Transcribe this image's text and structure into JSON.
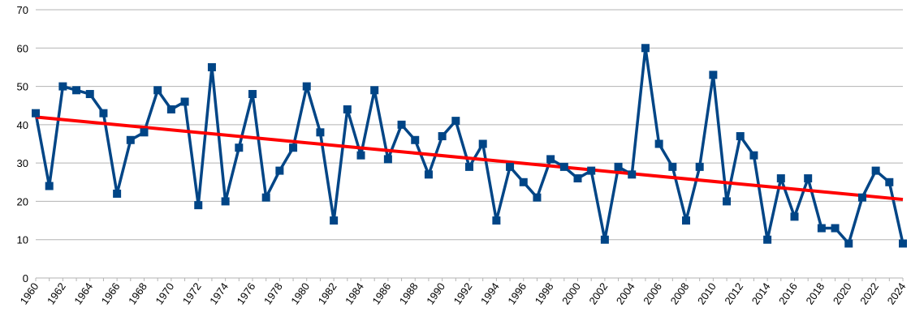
{
  "chart_data": {
    "type": "line",
    "categories": [
      "1960",
      null,
      "1962",
      null,
      "1964",
      null,
      "1966",
      null,
      "1968",
      null,
      "1970",
      null,
      "1972",
      null,
      "1974",
      null,
      "1976",
      null,
      "1978",
      null,
      "1980",
      null,
      "1982",
      null,
      "1984",
      null,
      "1986",
      null,
      "1988",
      null,
      "1990",
      null,
      "1992",
      null,
      "1994",
      null,
      "1996",
      null,
      "1998",
      null,
      "2000",
      null,
      "2002",
      null,
      "2004",
      null,
      "2006",
      null,
      "2008",
      null,
      "2010",
      null,
      "2012",
      null,
      "2014",
      null,
      "2016",
      null,
      "2018",
      null,
      "2020",
      null,
      "2022",
      null,
      "2024"
    ],
    "values": [
      43,
      24,
      50,
      49,
      48,
      43,
      22,
      36,
      38,
      49,
      44,
      46,
      19,
      55,
      20,
      34,
      48,
      21,
      28,
      34,
      50,
      38,
      15,
      44,
      32,
      49,
      31,
      40,
      36,
      27,
      37,
      41,
      29,
      35,
      15,
      29,
      25,
      21,
      31,
      29,
      26,
      28,
      10,
      29,
      27,
      60,
      35,
      29,
      15,
      29,
      53,
      20,
      37,
      32,
      10,
      26,
      16,
      26,
      13,
      13,
      9,
      21,
      28,
      25,
      9
    ],
    "color": "#004586",
    "trendline": {
      "x": [
        "1960",
        "2024"
      ],
      "values": [
        42,
        20.5
      ],
      "color": "#ff0000"
    },
    "ylim": [
      0,
      70
    ],
    "yticks": [
      0,
      10,
      20,
      30,
      40,
      50,
      60,
      70
    ],
    "grid": true
  }
}
